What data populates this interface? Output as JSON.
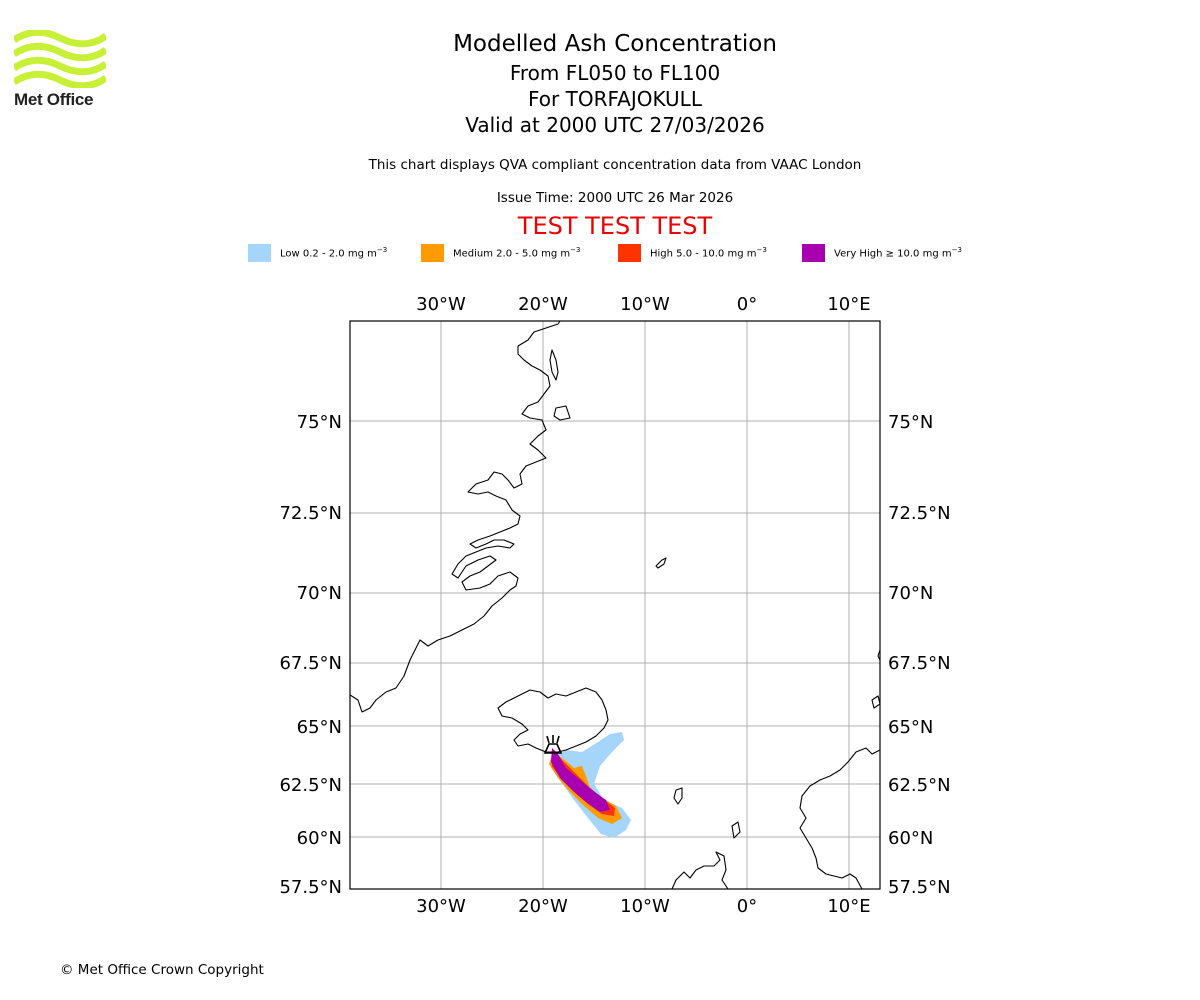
{
  "branding": {
    "logo_text": "Met Office",
    "logo_color": "#c8f036"
  },
  "header": {
    "title": "Modelled Ash Concentration",
    "level_range": "From FL050 to FL100",
    "volcano": "For TORFAJOKULL",
    "valid_time": "Valid at 2000 UTC 27/03/2026",
    "subtitle": "This chart displays QVA compliant concentration data from VAAC London",
    "issue_time": "Issue Time: 2000 UTC 26 Mar 2026",
    "test_banner": "TEST TEST TEST"
  },
  "legend": [
    {
      "label": "Low 0.2 - 2.0 mg m",
      "sup": "−3",
      "color": "#a5d5fb"
    },
    {
      "label": "Medium 2.0 - 5.0 mg m",
      "sup": "−3",
      "color": "#ff9a00"
    },
    {
      "label": "High 5.0 - 10.0 mg m",
      "sup": "−3",
      "color": "#ff3300"
    },
    {
      "label": "Very High  ≥  10.0 mg m",
      "sup": "−3",
      "color": "#a800b0"
    }
  ],
  "map": {
    "lon_ticks": [
      "30°W",
      "20°W",
      "10°W",
      "0°",
      "10°E"
    ],
    "lat_ticks": [
      "75°N",
      "72.5°N",
      "70°N",
      "67.5°N",
      "65°N",
      "62.5°N",
      "60°N",
      "57.5°N"
    ],
    "volcano_name": "TORFAJOKULL"
  },
  "footer": {
    "copyright": "© Met Office Crown Copyright"
  }
}
